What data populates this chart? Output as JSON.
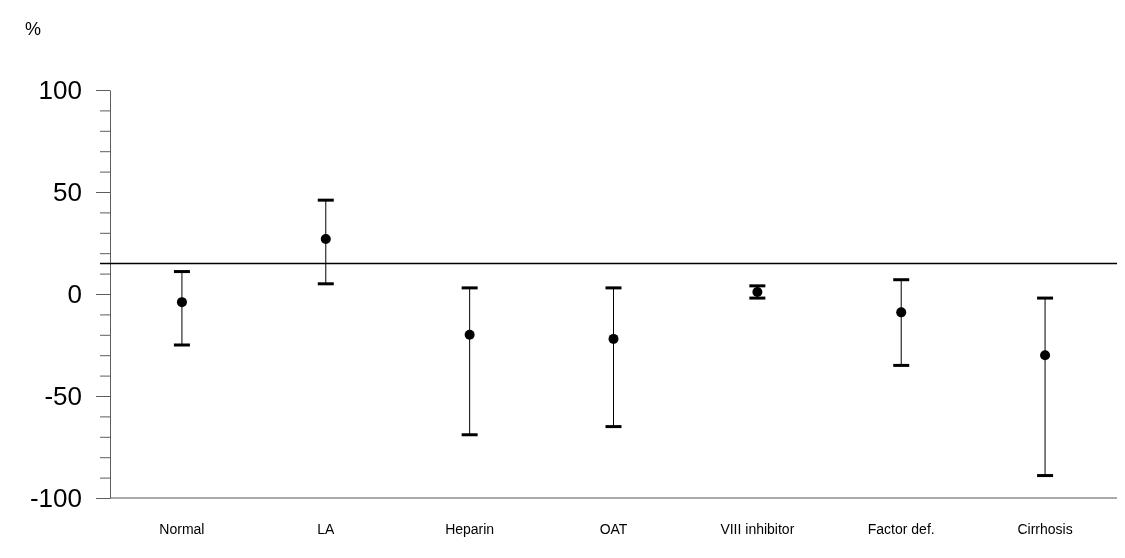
{
  "chart_data": {
    "type": "scatter",
    "ylabel": "%",
    "categories": [
      "Normal",
      "LA",
      "Heparin",
      "OAT",
      "VIII inhibitor",
      "Factor def.",
      "Cirrhosis"
    ],
    "values": [
      -4,
      27,
      -20,
      -22,
      1,
      -9,
      -30
    ],
    "errors": [
      [
        -25,
        11
      ],
      [
        5,
        46
      ],
      [
        -69,
        3
      ],
      [
        -65,
        3
      ],
      [
        -2,
        4
      ],
      [
        -35,
        7
      ],
      [
        -89,
        -2
      ]
    ],
    "color": "#000000",
    "marker": "circle",
    "ylim": [
      -100,
      100
    ],
    "yticks": [
      -100,
      {
        "value": -90,
        "label": null
      },
      {
        "value": -80,
        "label": null
      },
      {
        "value": -70,
        "label": null
      },
      {
        "value": -60,
        "label": null
      },
      -50,
      {
        "value": -40,
        "label": null
      },
      {
        "value": -30,
        "label": null
      },
      {
        "value": -20,
        "label": null
      },
      {
        "value": -10,
        "label": null
      },
      0,
      {
        "value": 10,
        "label": null
      },
      {
        "value": 20,
        "label": null
      },
      {
        "value": 30,
        "label": null
      },
      {
        "value": 40,
        "label": null
      },
      50,
      {
        "value": 60,
        "label": null
      },
      {
        "value": 70,
        "label": null
      },
      {
        "value": 80,
        "label": null
      },
      {
        "value": 90,
        "label": null
      },
      100
    ],
    "ref_lines": [
      {
        "axis": "y",
        "value": 15,
        "color": "#000000",
        "line_style": "solid"
      }
    ],
    "grid": false
  }
}
